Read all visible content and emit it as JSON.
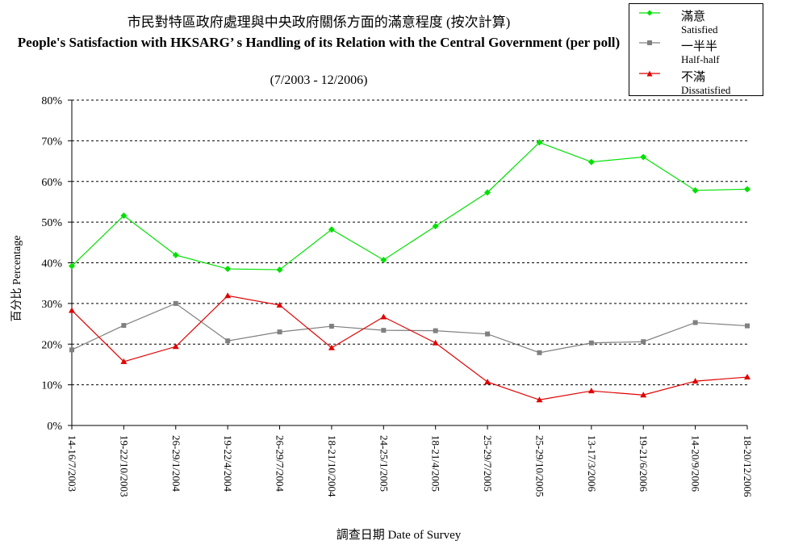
{
  "chart_data": {
    "type": "line",
    "title_zh": "市民對特區政府處理與中央政府關係方面的滿意程度 (按次計算)",
    "title_en": "People's Satisfaction with HKSARG’ s Handling of its Relation with the Central Government (per poll)",
    "subtitle": "(7/2003 - 12/2006)",
    "xlabel": "調查日期 Date of Survey",
    "ylabel": "百分比 Percentage",
    "ylim": [
      0,
      80
    ],
    "yticks": [
      "0%",
      "10%",
      "20%",
      "30%",
      "40%",
      "50%",
      "60%",
      "70%",
      "80%"
    ],
    "grid": "horizontal dashed",
    "legend_position": "top-right",
    "categories": [
      "14-16/7/2003",
      "19-22/10/2003",
      "26-29/1/2004",
      "19-22/4/2004",
      "26-29/7/2004",
      "18-21/10/2004",
      "24-25/1/2005",
      "18-21/4/2005",
      "25-29/7/2005",
      "25-29/10/2005",
      "13-17/3/2006",
      "19-21/6/2006",
      "14-20/9/2006",
      "18-20/12/2006"
    ],
    "series": [
      {
        "name_zh": "滿意",
        "name_en": "Satisfied",
        "color": "#00e000",
        "marker": "diamond",
        "values": [
          39.2,
          51.6,
          41.9,
          38.5,
          38.3,
          48.2,
          40.7,
          49.0,
          57.3,
          69.6,
          64.8,
          66.0,
          57.8,
          58.1
        ]
      },
      {
        "name_zh": "一半半",
        "name_en": "Half-half",
        "color": "#808080",
        "marker": "square",
        "values": [
          18.6,
          24.6,
          30.0,
          20.8,
          23.0,
          24.4,
          23.4,
          23.3,
          22.5,
          17.9,
          20.3,
          20.6,
          25.3,
          24.5
        ]
      },
      {
        "name_zh": "不滿",
        "name_en": "Dissatisfied",
        "color": "#e00000",
        "marker": "triangle",
        "values": [
          28.3,
          15.7,
          19.4,
          31.9,
          29.6,
          19.1,
          26.7,
          20.3,
          10.7,
          6.3,
          8.5,
          7.5,
          10.9,
          11.9
        ]
      }
    ]
  }
}
